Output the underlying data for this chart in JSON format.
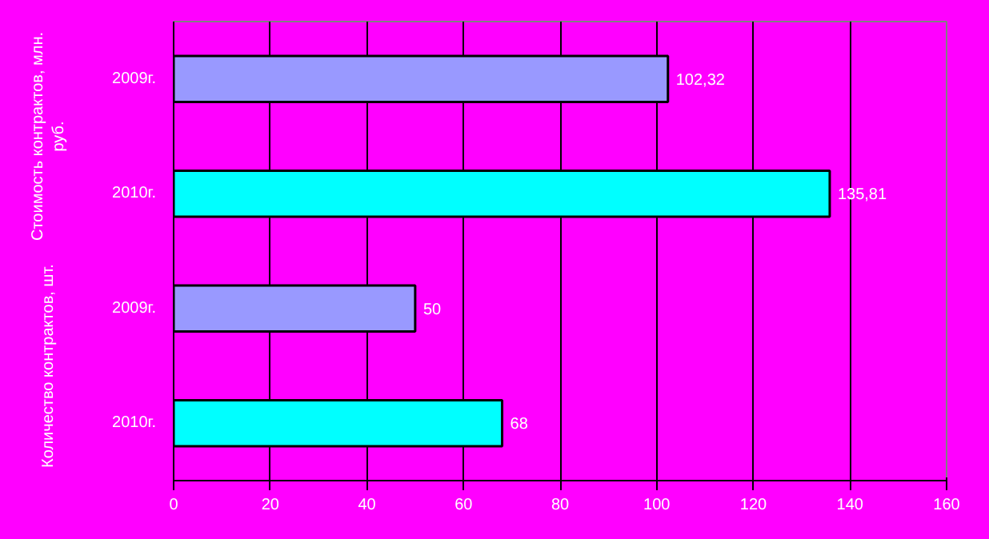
{
  "chart_data": {
    "type": "bar",
    "orientation": "horizontal",
    "categories": [
      "2009г.",
      "2010г.",
      "2009г.",
      "2010г."
    ],
    "values": [
      102.32,
      135.81,
      50,
      68
    ],
    "colors": [
      "#9999ff",
      "#00ffff",
      "#9999ff",
      "#00ffff"
    ],
    "value_labels": [
      "102,32",
      "135,81",
      "50",
      "68"
    ],
    "annotations": [
      "Стоимость контрактов, млн. руб.",
      "Количество контрактов, шт."
    ],
    "xlim": [
      0,
      160
    ],
    "xticks": [
      0,
      20,
      40,
      60,
      80,
      100,
      120,
      140,
      160
    ],
    "grid": "x"
  }
}
